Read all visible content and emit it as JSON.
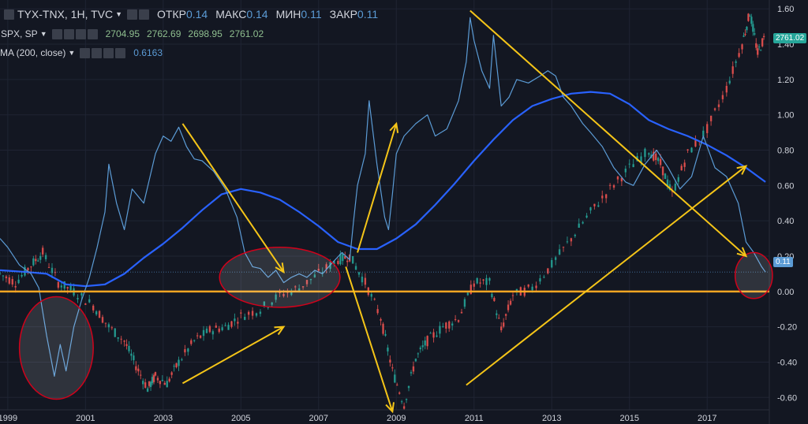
{
  "header": {
    "symbol": "TYX-TNX, 1H, TVC",
    "open_label": "ОТКР",
    "open": "0.14",
    "high_label": "МАКС",
    "high": "0.14",
    "low_label": "МИН",
    "low": "0.11",
    "close_label": "ЗАКР",
    "close": "0.11"
  },
  "legend2": {
    "name": "SPX, SP",
    "v1": "2704.95",
    "v2": "2762.69",
    "v3": "2698.95",
    "v4": "2761.02"
  },
  "legend3": {
    "name": "MA (200, close)",
    "value": "0.6163"
  },
  "price_tags": {
    "spx": "2761.02",
    "spread": "0.11"
  },
  "colors": {
    "background": "#131722",
    "spread": "#5b9bd5",
    "ma": "#2962ff",
    "zero_line": "#f5a623",
    "arrows": "#f5c518",
    "ellipses": "#d0021b",
    "candle_up": "#26a69a",
    "candle_down": "#ef5350"
  },
  "chart_data": {
    "type": "line",
    "x_ticks": [
      "1999",
      "2001",
      "2003",
      "2005",
      "2007",
      "2009",
      "2011",
      "2013",
      "2015",
      "2017"
    ],
    "y_ticks": [
      "1.60",
      "1.40",
      "1.20",
      "1.00",
      "0.80",
      "0.60",
      "0.40",
      "0.20",
      "0.00",
      "-0.20",
      "-0.40",
      "-0.60"
    ],
    "ylim": [
      -0.67,
      1.65
    ],
    "xlim": [
      1998.8,
      2018.6
    ],
    "horizontal_line": 0.0,
    "series": [
      {
        "name": "TYX-TNX",
        "points": [
          [
            1998.8,
            0.3
          ],
          [
            1999.0,
            0.25
          ],
          [
            1999.3,
            0.15
          ],
          [
            1999.6,
            0.1
          ],
          [
            1999.8,
            0.02
          ],
          [
            2000.0,
            -0.25
          ],
          [
            2000.2,
            -0.48
          ],
          [
            2000.35,
            -0.3
          ],
          [
            2000.5,
            -0.45
          ],
          [
            2000.7,
            -0.2
          ],
          [
            2000.9,
            -0.05
          ],
          [
            2001.1,
            0.08
          ],
          [
            2001.3,
            0.25
          ],
          [
            2001.5,
            0.45
          ],
          [
            2001.6,
            0.72
          ],
          [
            2001.8,
            0.5
          ],
          [
            2002.0,
            0.35
          ],
          [
            2002.2,
            0.58
          ],
          [
            2002.5,
            0.5
          ],
          [
            2002.8,
            0.78
          ],
          [
            2003.0,
            0.88
          ],
          [
            2003.2,
            0.85
          ],
          [
            2003.4,
            0.93
          ],
          [
            2003.6,
            0.82
          ],
          [
            2003.8,
            0.75
          ],
          [
            2004.0,
            0.74
          ],
          [
            2004.3,
            0.68
          ],
          [
            2004.6,
            0.58
          ],
          [
            2004.9,
            0.42
          ],
          [
            2005.1,
            0.22
          ],
          [
            2005.3,
            0.14
          ],
          [
            2005.5,
            0.13
          ],
          [
            2005.7,
            0.08
          ],
          [
            2005.9,
            0.12
          ],
          [
            2006.1,
            0.05
          ],
          [
            2006.3,
            0.08
          ],
          [
            2006.5,
            0.1
          ],
          [
            2006.7,
            0.08
          ],
          [
            2006.9,
            0.12
          ],
          [
            2007.1,
            0.1
          ],
          [
            2007.3,
            0.15
          ],
          [
            2007.6,
            0.22
          ],
          [
            2007.8,
            0.18
          ],
          [
            2007.9,
            0.4
          ],
          [
            2008.0,
            0.6
          ],
          [
            2008.2,
            0.78
          ],
          [
            2008.3,
            1.08
          ],
          [
            2008.5,
            0.72
          ],
          [
            2008.7,
            0.42
          ],
          [
            2008.8,
            0.35
          ],
          [
            2008.9,
            0.55
          ],
          [
            2009.0,
            0.78
          ],
          [
            2009.2,
            0.88
          ],
          [
            2009.5,
            0.95
          ],
          [
            2009.8,
            1.0
          ],
          [
            2010.0,
            0.88
          ],
          [
            2010.3,
            0.92
          ],
          [
            2010.6,
            1.08
          ],
          [
            2010.8,
            1.3
          ],
          [
            2010.9,
            1.55
          ],
          [
            2011.0,
            1.42
          ],
          [
            2011.2,
            1.25
          ],
          [
            2011.4,
            1.15
          ],
          [
            2011.5,
            1.45
          ],
          [
            2011.7,
            1.05
          ],
          [
            2011.9,
            1.1
          ],
          [
            2012.1,
            1.2
          ],
          [
            2012.4,
            1.18
          ],
          [
            2012.7,
            1.22
          ],
          [
            2012.9,
            1.25
          ],
          [
            2013.1,
            1.22
          ],
          [
            2013.3,
            1.1
          ],
          [
            2013.5,
            1.05
          ],
          [
            2013.8,
            0.95
          ],
          [
            2014.0,
            0.9
          ],
          [
            2014.3,
            0.82
          ],
          [
            2014.6,
            0.7
          ],
          [
            2014.9,
            0.62
          ],
          [
            2015.1,
            0.6
          ],
          [
            2015.4,
            0.72
          ],
          [
            2015.7,
            0.8
          ],
          [
            2016.0,
            0.7
          ],
          [
            2016.3,
            0.58
          ],
          [
            2016.6,
            0.65
          ],
          [
            2016.9,
            0.88
          ],
          [
            2017.2,
            0.7
          ],
          [
            2017.5,
            0.65
          ],
          [
            2017.8,
            0.5
          ],
          [
            2018.0,
            0.28
          ],
          [
            2018.2,
            0.22
          ],
          [
            2018.4,
            0.14
          ],
          [
            2018.5,
            0.11
          ]
        ]
      },
      {
        "name": "MA (200, close)",
        "points": [
          [
            1998.8,
            0.12
          ],
          [
            1999.5,
            0.11
          ],
          [
            2000.0,
            0.1
          ],
          [
            2000.5,
            0.04
          ],
          [
            2001.0,
            0.03
          ],
          [
            2001.5,
            0.04
          ],
          [
            2002.0,
            0.1
          ],
          [
            2002.5,
            0.19
          ],
          [
            2003.0,
            0.27
          ],
          [
            2003.5,
            0.36
          ],
          [
            2004.0,
            0.46
          ],
          [
            2004.5,
            0.55
          ],
          [
            2005.0,
            0.58
          ],
          [
            2005.5,
            0.56
          ],
          [
            2006.0,
            0.52
          ],
          [
            2006.5,
            0.45
          ],
          [
            2007.0,
            0.37
          ],
          [
            2007.5,
            0.28
          ],
          [
            2008.0,
            0.24
          ],
          [
            2008.5,
            0.24
          ],
          [
            2009.0,
            0.3
          ],
          [
            2009.5,
            0.38
          ],
          [
            2010.0,
            0.49
          ],
          [
            2010.5,
            0.61
          ],
          [
            2011.0,
            0.74
          ],
          [
            2011.5,
            0.86
          ],
          [
            2012.0,
            0.97
          ],
          [
            2012.5,
            1.05
          ],
          [
            2013.0,
            1.09
          ],
          [
            2013.5,
            1.12
          ],
          [
            2014.0,
            1.13
          ],
          [
            2014.5,
            1.12
          ],
          [
            2015.0,
            1.06
          ],
          [
            2015.5,
            0.97
          ],
          [
            2016.0,
            0.92
          ],
          [
            2016.5,
            0.88
          ],
          [
            2017.0,
            0.83
          ],
          [
            2017.5,
            0.77
          ],
          [
            2018.0,
            0.7
          ],
          [
            2018.5,
            0.62
          ]
        ]
      },
      {
        "name": "SPX, SP",
        "points": [
          [
            1998.8,
            0.1
          ],
          [
            1999.2,
            0.05
          ],
          [
            1999.6,
            0.15
          ],
          [
            1999.9,
            0.22
          ],
          [
            2000.3,
            0.05
          ],
          [
            2000.7,
            0.0
          ],
          [
            2001.2,
            -0.08
          ],
          [
            2001.6,
            -0.2
          ],
          [
            2002.0,
            -0.28
          ],
          [
            2002.3,
            -0.42
          ],
          [
            2002.6,
            -0.55
          ],
          [
            2002.8,
            -0.48
          ],
          [
            2003.1,
            -0.52
          ],
          [
            2003.4,
            -0.4
          ],
          [
            2003.8,
            -0.28
          ],
          [
            2004.2,
            -0.22
          ],
          [
            2004.6,
            -0.2
          ],
          [
            2005.0,
            -0.14
          ],
          [
            2005.5,
            -0.1
          ],
          [
            2006.0,
            -0.02
          ],
          [
            2006.5,
            0.02
          ],
          [
            2007.0,
            0.1
          ],
          [
            2007.5,
            0.18
          ],
          [
            2007.8,
            0.2
          ],
          [
            2008.2,
            0.05
          ],
          [
            2008.6,
            -0.15
          ],
          [
            2008.9,
            -0.45
          ],
          [
            2009.2,
            -0.64
          ],
          [
            2009.5,
            -0.38
          ],
          [
            2009.8,
            -0.28
          ],
          [
            2010.2,
            -0.2
          ],
          [
            2010.6,
            -0.15
          ],
          [
            2011.0,
            0.05
          ],
          [
            2011.4,
            0.05
          ],
          [
            2011.7,
            -0.22
          ],
          [
            2012.0,
            -0.02
          ],
          [
            2012.5,
            0.02
          ],
          [
            2013.0,
            0.15
          ],
          [
            2013.5,
            0.3
          ],
          [
            2014.0,
            0.45
          ],
          [
            2014.5,
            0.58
          ],
          [
            2015.0,
            0.7
          ],
          [
            2015.5,
            0.8
          ],
          [
            2015.8,
            0.72
          ],
          [
            2016.1,
            0.55
          ],
          [
            2016.5,
            0.78
          ],
          [
            2017.0,
            0.92
          ],
          [
            2017.5,
            1.15
          ],
          [
            2017.9,
            1.4
          ],
          [
            2018.1,
            1.58
          ],
          [
            2018.3,
            1.35
          ],
          [
            2018.5,
            1.45
          ]
        ]
      }
    ],
    "annotations": {
      "ellipses": [
        {
          "cx": 2000.25,
          "cy": -0.32,
          "rx": 0.95,
          "ry": 0.29
        },
        {
          "cx": 2006.0,
          "cy": 0.08,
          "rx": 1.55,
          "ry": 0.17
        },
        {
          "cx": 2018.2,
          "cy": 0.09,
          "rx": 0.48,
          "ry": 0.13
        }
      ],
      "arrows": [
        [
          [
            2003.5,
            0.95
          ],
          [
            2006.1,
            0.11
          ]
        ],
        [
          [
            2003.5,
            -0.52
          ],
          [
            2006.1,
            -0.2
          ]
        ],
        [
          [
            2007.7,
            0.14
          ],
          [
            2008.9,
            -0.68
          ]
        ],
        [
          [
            2008.0,
            0.22
          ],
          [
            2009.0,
            0.95
          ]
        ],
        [
          [
            2010.9,
            1.59
          ],
          [
            2018.0,
            0.2
          ]
        ],
        [
          [
            2010.8,
            -0.53
          ],
          [
            2018.0,
            0.71
          ]
        ]
      ]
    }
  }
}
